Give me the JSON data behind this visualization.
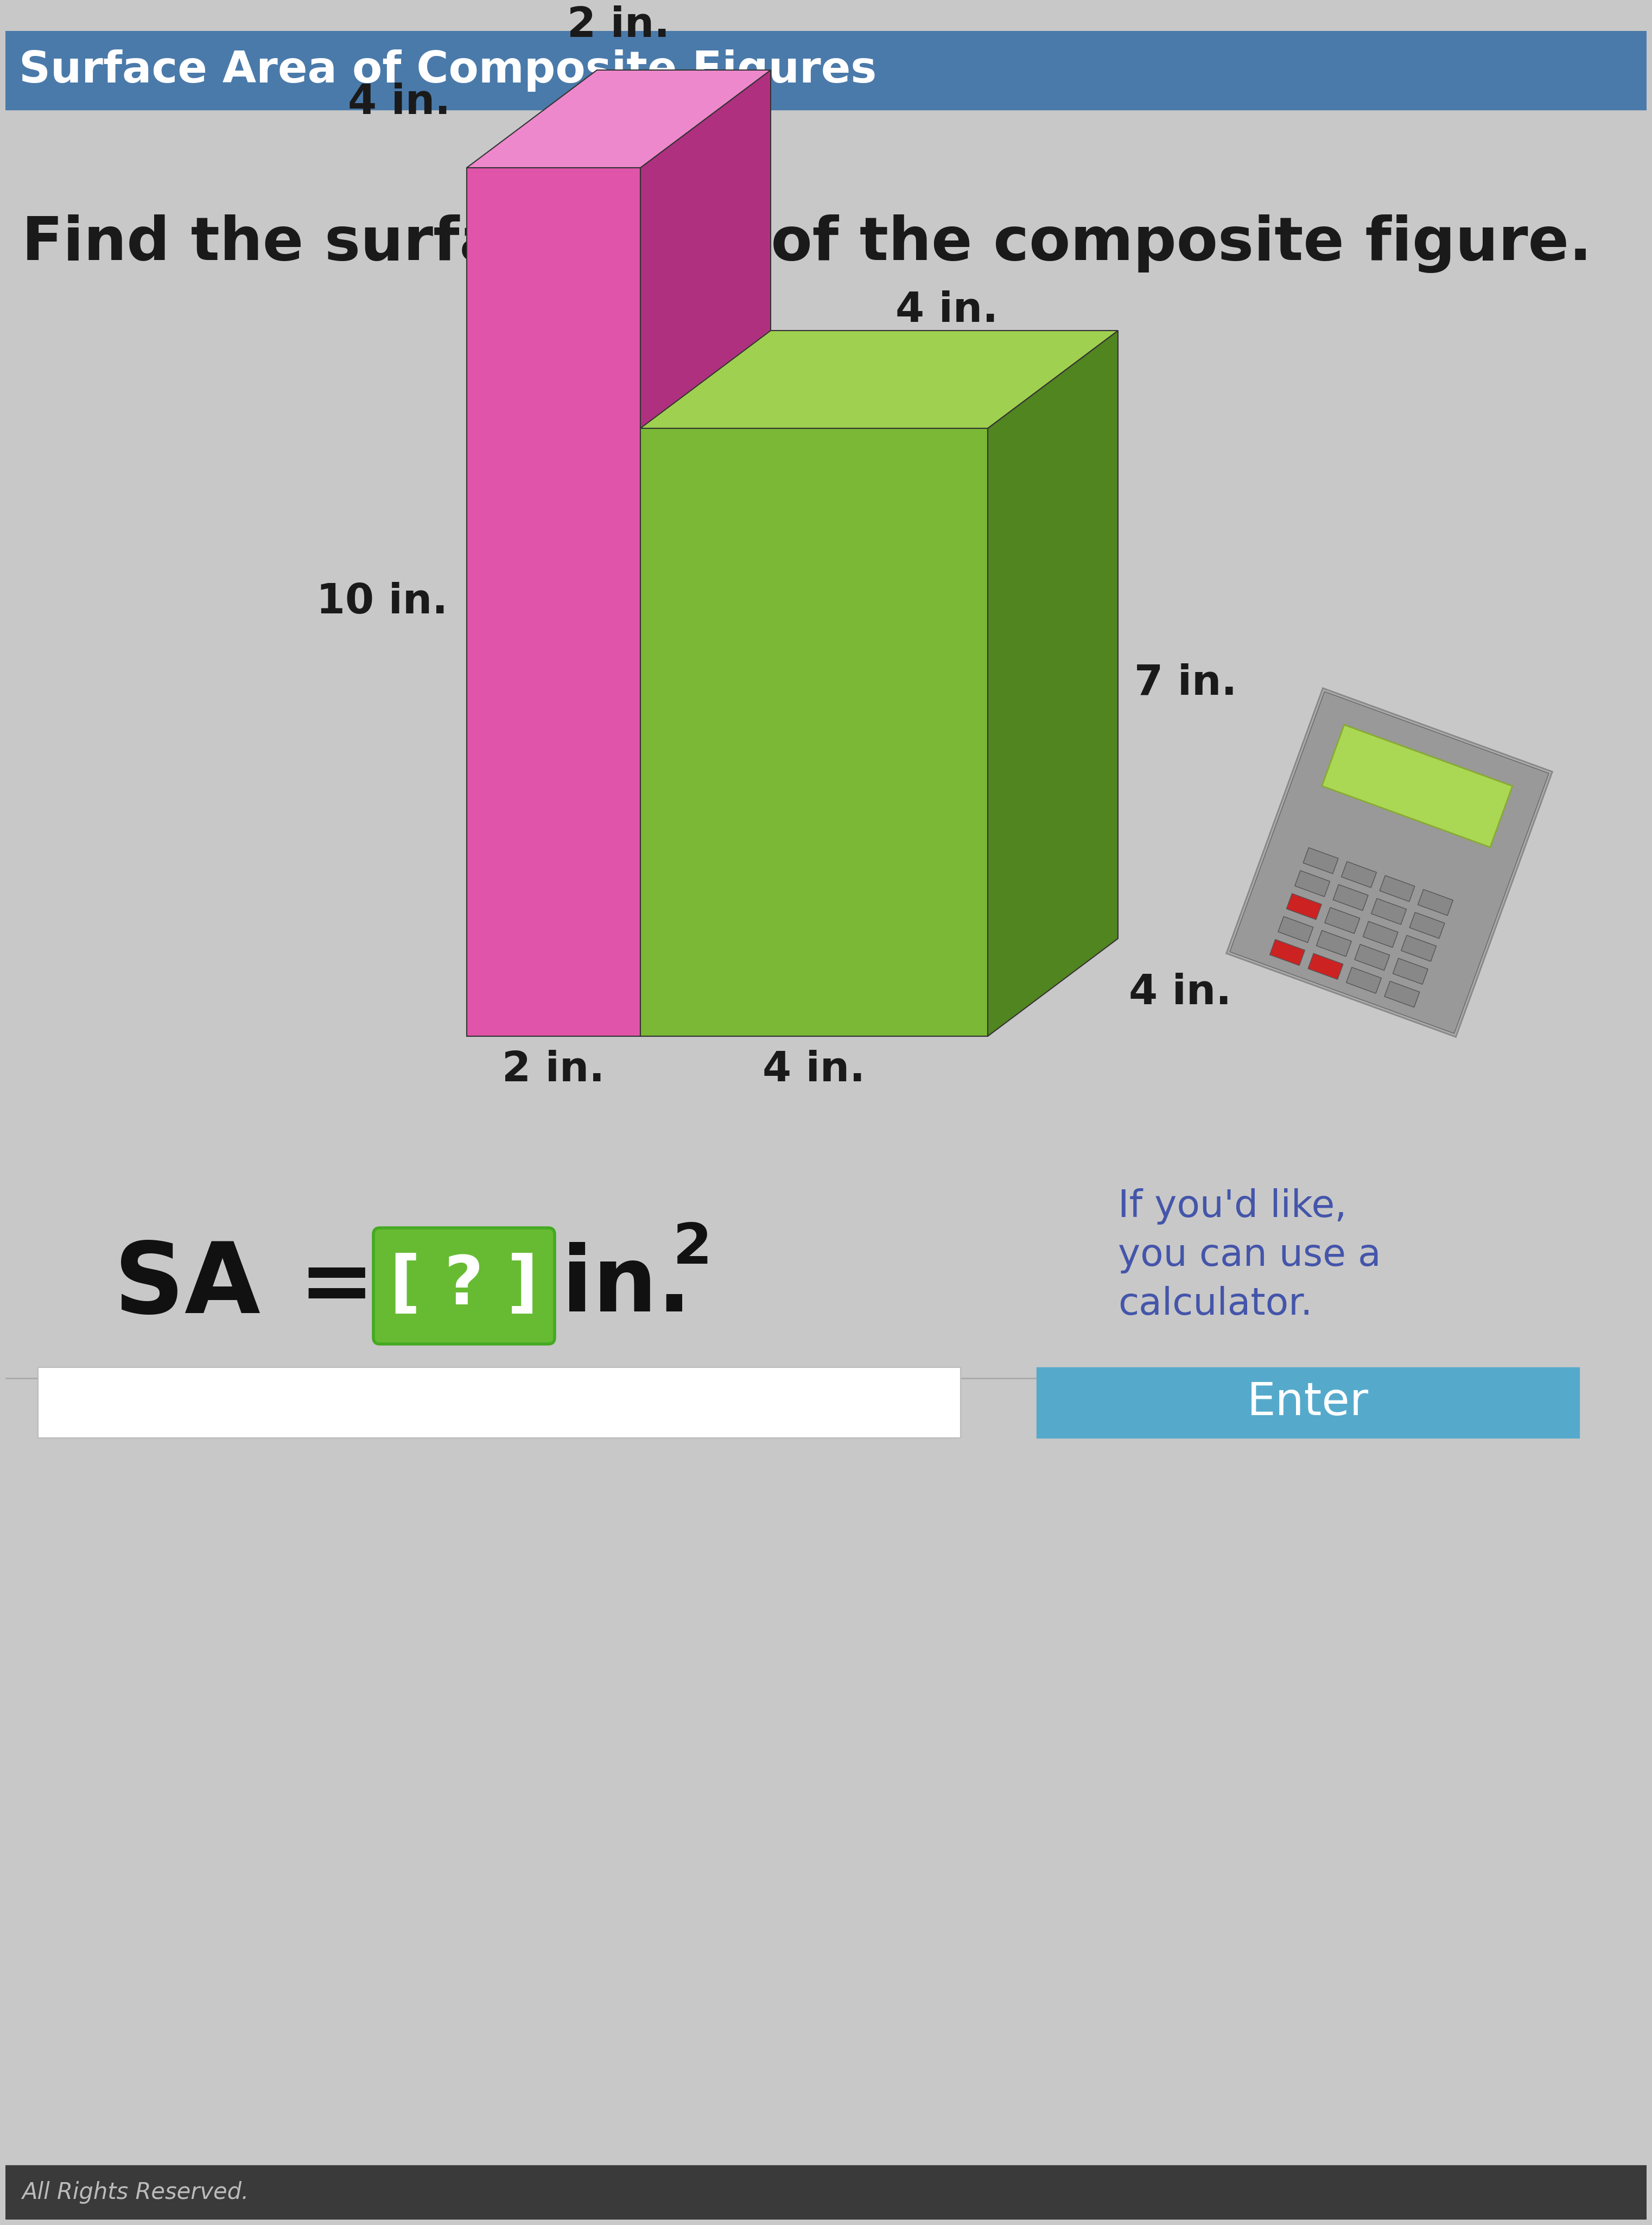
{
  "title_bar_text": "Surface Area of Composite Figures",
  "title_bar_color": "#4a7aaa",
  "title_bar_text_color": "#ffffff",
  "main_bg_color": "#c8c8c8",
  "bottom_bar_color": "#3a3a3a",
  "instruction_text": "Find the surface area of the composite figure.",
  "instruction_color": "#1a1a1a",
  "pink_front_color": "#e055aa",
  "pink_side_color": "#b03080",
  "pink_top_color": "#ee88cc",
  "green_front_color": "#7ab835",
  "green_side_color": "#508520",
  "green_top_color": "#a0d050",
  "label_2in_top": "2 in.",
  "label_4in_left": "4 in.",
  "label_10in": "10 in.",
  "label_4in_green_top": "4 in.",
  "label_7in": "7 in.",
  "label_4in_depth": "4 in.",
  "label_2in_bottom": "2 in.",
  "label_4in_bottom": "4 in.",
  "sa_label": "SA",
  "eq_label": "=",
  "bracket_label": "[ ? ]",
  "in_label": "in.",
  "exp_label": "2",
  "hint_line1": "If you'd like,",
  "hint_line2": "you can use a",
  "hint_line3": "calculator.",
  "hint_color": "#4455aa",
  "enter_text": "Enter",
  "enter_bg": "#55aacc",
  "enter_fg": "#ffffff",
  "all_rights": "All Rights Reserved.",
  "label_color": "#1a1a1a",
  "bracket_green": "#66bb33",
  "bracket_border": "#44aa22"
}
